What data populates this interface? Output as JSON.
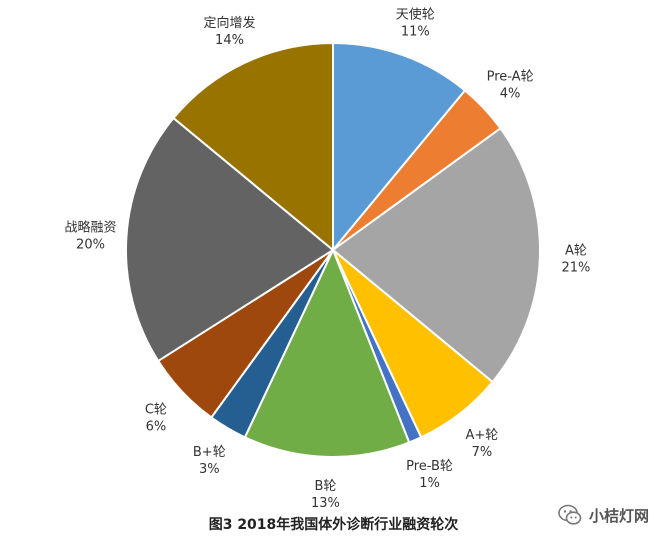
{
  "chart_data": {
    "type": "pie",
    "title": "",
    "start_angle_deg": 0,
    "direction": "clockwise",
    "slices": [
      {
        "label": "天使轮",
        "value": 11,
        "value_label": "11%",
        "color": "#5B9BD5"
      },
      {
        "label": "Pre-A轮",
        "value": 4,
        "value_label": "4%",
        "color": "#ED7D31"
      },
      {
        "label": "A轮",
        "value": 21,
        "value_label": "21%",
        "color": "#A5A5A5"
      },
      {
        "label": "A+轮",
        "value": 7,
        "value_label": "7%",
        "color": "#FFC000"
      },
      {
        "label": "Pre-B轮",
        "value": 1,
        "value_label": "1%",
        "color": "#4472C4"
      },
      {
        "label": "B轮",
        "value": 13,
        "value_label": "13%",
        "color": "#70AD47"
      },
      {
        "label": "B+轮",
        "value": 3,
        "value_label": "3%",
        "color": "#255E91"
      },
      {
        "label": "C轮",
        "value": 6,
        "value_label": "6%",
        "color": "#9E480E"
      },
      {
        "label": "战略融资",
        "value": 20,
        "value_label": "20%",
        "color": "#636363"
      },
      {
        "label": "定向增发",
        "value": 14,
        "value_label": "14%",
        "color": "#997300"
      }
    ]
  },
  "caption": "图3   2018年我国体外诊断行业融资轮次",
  "watermark": {
    "icon": "wechat-icon",
    "text": "小桔灯网"
  }
}
